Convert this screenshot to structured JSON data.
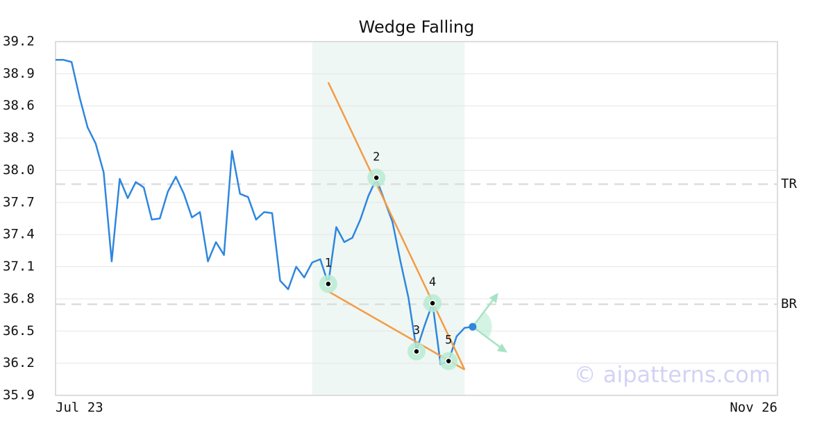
{
  "chart_data": {
    "type": "line",
    "title": "Wedge Falling",
    "watermark": "© aipatterns.com",
    "series": [
      {
        "color": "#2e86de",
        "values": [
          39.03,
          39.03,
          39.01,
          38.68,
          38.4,
          38.25,
          37.98,
          37.15,
          37.92,
          37.74,
          37.89,
          37.84,
          37.54,
          37.55,
          37.8,
          37.94,
          37.78,
          37.56,
          37.61,
          37.15,
          37.33,
          37.21,
          38.18,
          37.78,
          37.75,
          37.54,
          37.61,
          37.6,
          36.97,
          36.89,
          37.1,
          37.0,
          37.14,
          37.17,
          36.94,
          37.47,
          37.33,
          37.37,
          37.54,
          37.76,
          37.92,
          37.72,
          37.52,
          37.15,
          36.81,
          36.32,
          36.55,
          36.76,
          36.19,
          36.22,
          36.45,
          36.53,
          36.54
        ]
      }
    ],
    "xlim": [
      0,
      90
    ],
    "xticks": [
      {
        "value": 0,
        "label": "Jul 23"
      },
      {
        "value": 90,
        "label": "Nov 26"
      }
    ],
    "ylim": [
      35.9,
      39.2
    ],
    "yticks": [
      35.9,
      36.2,
      36.5,
      36.8,
      37.1,
      37.4,
      37.7,
      {
        "value": 38.0,
        "label": "38.0"
      },
      38.3,
      38.6,
      38.9,
      39.2
    ],
    "grid": true,
    "highlight_xlim": [
      32,
      51
    ],
    "highlight_color": "#eef7f3",
    "trend_color": "#f59a44",
    "trendlines": [
      {
        "x": [
          34,
          51
        ],
        "y": [
          38.82,
          36.14
        ]
      },
      {
        "x": [
          34,
          51
        ],
        "y": [
          36.87,
          36.14
        ]
      }
    ],
    "pivot_color": "#b8ebd2",
    "pivots": [
      {
        "label": "1",
        "x": 34,
        "y": 36.94
      },
      {
        "label": "2",
        "x": 40,
        "y": 37.93
      },
      {
        "label": "3",
        "x": 45,
        "y": 36.31
      },
      {
        "label": "4",
        "x": 47,
        "y": 36.76
      },
      {
        "label": "5",
        "x": 49,
        "y": 36.22
      }
    ],
    "levels": [
      {
        "label": "TR",
        "value": 37.87
      },
      {
        "label": "BR",
        "value": 36.75
      }
    ]
  }
}
